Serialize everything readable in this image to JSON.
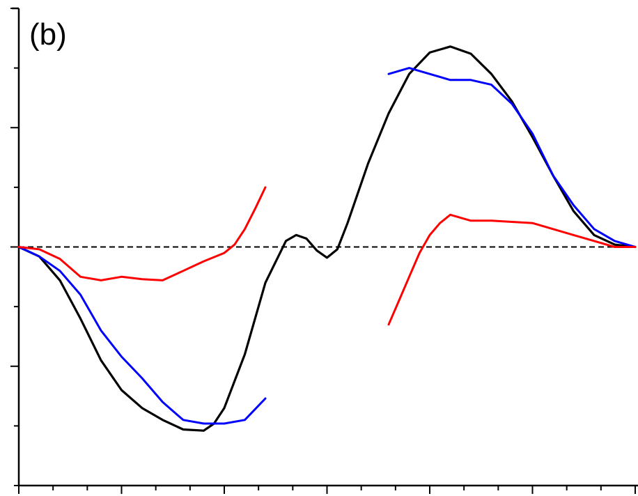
{
  "chart_data": {
    "type": "line",
    "panel_label": "(b)",
    "title": "",
    "xlabel": "",
    "ylabel": "",
    "xlim": [
      0,
      6
    ],
    "ylim": [
      -2,
      2
    ],
    "grid": false,
    "legend": "none",
    "x_ticks_major": [
      0,
      1,
      2,
      3,
      4,
      5,
      6
    ],
    "x_ticks_minor_step": 0.333333,
    "y_ticks_major": [
      -1,
      0,
      1,
      2
    ],
    "y_ticks_minor_step": 0.5,
    "zero_line": {
      "y": 0,
      "style": "dashed",
      "color": "#000000"
    },
    "series": [
      {
        "color": "#000000",
        "x": [
          0.0,
          0.2,
          0.4,
          0.6,
          0.8,
          1.0,
          1.2,
          1.4,
          1.6,
          1.8,
          1.9,
          2.0,
          2.2,
          2.4,
          2.6,
          2.7,
          2.8,
          2.9,
          3.0,
          3.1,
          3.2,
          3.4,
          3.6,
          3.8,
          4.0,
          4.2,
          4.4,
          4.6,
          4.8,
          5.0,
          5.2,
          5.4,
          5.6,
          5.8,
          6.0
        ],
        "y": [
          0.0,
          -0.08,
          -0.28,
          -0.6,
          -0.95,
          -1.2,
          -1.35,
          -1.45,
          -1.53,
          -1.54,
          -1.48,
          -1.35,
          -0.9,
          -0.3,
          0.05,
          0.1,
          0.07,
          -0.03,
          -0.09,
          -0.02,
          0.2,
          0.7,
          1.12,
          1.45,
          1.63,
          1.68,
          1.62,
          1.45,
          1.22,
          0.92,
          0.6,
          0.3,
          0.1,
          0.02,
          0.0
        ]
      },
      {
        "color": "#0000ff",
        "x": [
          0.0,
          0.2,
          0.4,
          0.6,
          0.8,
          1.0,
          1.2,
          1.4,
          1.6,
          1.8,
          2.0,
          2.2,
          2.4
        ],
        "y": [
          0.0,
          -0.08,
          -0.2,
          -0.4,
          -0.7,
          -0.92,
          -1.1,
          -1.3,
          -1.45,
          -1.48,
          -1.48,
          -1.45,
          -1.27
        ]
      },
      {
        "color": "#0000ff",
        "x": [
          3.6,
          3.8,
          4.0,
          4.2,
          4.4,
          4.6,
          4.8,
          5.0,
          5.2,
          5.4,
          5.6,
          5.8,
          6.0
        ],
        "y": [
          1.45,
          1.5,
          1.45,
          1.4,
          1.4,
          1.36,
          1.2,
          0.95,
          0.6,
          0.35,
          0.15,
          0.05,
          0.0
        ]
      },
      {
        "color": "#ff0000",
        "x": [
          0.0,
          0.2,
          0.4,
          0.6,
          0.8,
          1.0,
          1.2,
          1.4,
          1.6,
          1.8,
          2.0,
          2.1,
          2.2,
          2.3,
          2.4
        ],
        "y": [
          0.0,
          -0.02,
          -0.1,
          -0.25,
          -0.28,
          -0.25,
          -0.27,
          -0.28,
          -0.2,
          -0.12,
          -0.05,
          0.02,
          0.15,
          0.32,
          0.5
        ]
      },
      {
        "color": "#ff0000",
        "x": [
          3.6,
          3.7,
          3.8,
          3.9,
          4.0,
          4.1,
          4.2,
          4.4,
          4.6,
          4.8,
          5.0,
          5.2,
          5.4,
          5.6,
          5.8,
          6.0
        ],
        "y": [
          -0.65,
          -0.45,
          -0.25,
          -0.05,
          0.1,
          0.2,
          0.27,
          0.22,
          0.22,
          0.21,
          0.2,
          0.15,
          0.1,
          0.05,
          0.0,
          0.0
        ]
      }
    ]
  }
}
